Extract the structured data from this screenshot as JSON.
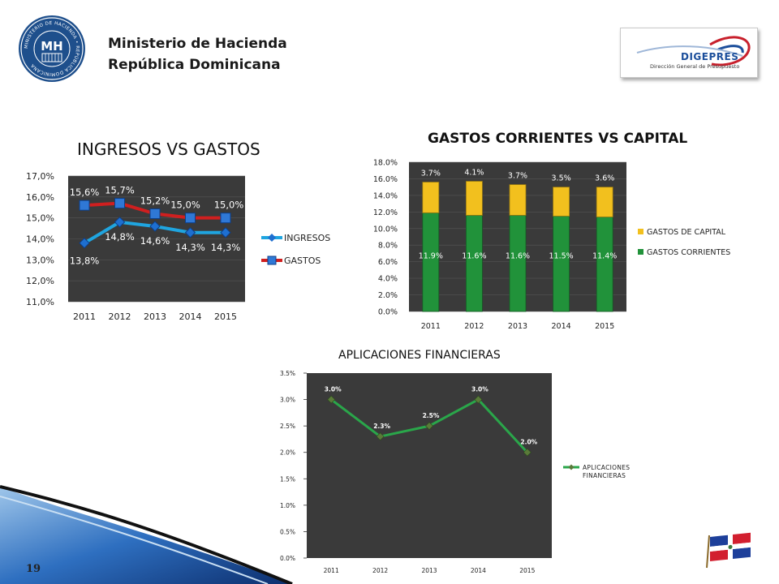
{
  "header": {
    "org_line1": "Ministerio de Hacienda",
    "org_line2": "República Dominicana",
    "seal_text": "MINISTERIO DE HACIENDA • REPÚBLICA DOMINICANA",
    "seal_monogram": "MH",
    "logo_name": "DIGEPRES",
    "logo_subtitle": "Dirección General de Presupuesto"
  },
  "colors": {
    "plot_bg": "#3a3a3a",
    "ingresos": "#1fa5e0",
    "gastos": "#d01f1f",
    "capital": "#f2c01e",
    "corrientes": "#21923a",
    "aplicaciones": "#2aa64a",
    "seal_blue": "#1e4f8c"
  },
  "footer": {
    "page_number": "19",
    "flag_icon": "dominican-flag-icon"
  },
  "chart_data": [
    {
      "id": "ingresos-gastos",
      "type": "line",
      "title": "INGRESOS VS GASTOS",
      "x": [
        "2011",
        "2012",
        "2013",
        "2014",
        "2015"
      ],
      "ylim": [
        11.0,
        17.0
      ],
      "yticks": [
        "11,0%",
        "12,0%",
        "13,0%",
        "14,0%",
        "15,0%",
        "16,0%",
        "17,0%"
      ],
      "legend_position": "right",
      "series": [
        {
          "name": "INGRESOS",
          "values": [
            13.8,
            14.8,
            14.6,
            14.3,
            14.3
          ],
          "labels": [
            "13,8%",
            "14,8%",
            "14,6%",
            "14,3%",
            "14,3%"
          ]
        },
        {
          "name": "GASTOS",
          "values": [
            15.6,
            15.7,
            15.2,
            15.0,
            15.0
          ],
          "labels": [
            "15,6%",
            "15,7%",
            "15,2%",
            "15,0%",
            "15,0%"
          ]
        }
      ]
    },
    {
      "id": "corrientes-capital",
      "type": "bar",
      "stacked": true,
      "title": "GASTOS CORRIENTES VS CAPITAL",
      "categories": [
        "2011",
        "2012",
        "2013",
        "2014",
        "2015"
      ],
      "ylim": [
        0,
        18
      ],
      "yticks": [
        "0.0%",
        "2.0%",
        "4.0%",
        "6.0%",
        "8.0%",
        "10.0%",
        "12.0%",
        "14.0%",
        "16.0%",
        "18.0%"
      ],
      "legend_position": "right",
      "series": [
        {
          "name": "GASTOS CORRIENTES",
          "values": [
            11.9,
            11.6,
            11.6,
            11.5,
            11.4
          ],
          "labels": [
            "11.9%",
            "11.6%",
            "11.6%",
            "11.5%",
            "11.4%"
          ]
        },
        {
          "name": "GASTOS DE CAPITAL",
          "values": [
            3.7,
            4.1,
            3.7,
            3.5,
            3.6
          ],
          "labels": [
            "3.7%",
            "4.1%",
            "3.7%",
            "3.5%",
            "3.6%"
          ]
        }
      ]
    },
    {
      "id": "aplicaciones",
      "type": "line",
      "title": "APLICACIONES FINANCIERAS",
      "x": [
        "2011",
        "2012",
        "2013",
        "2014",
        "2015"
      ],
      "ylim": [
        0,
        3.5
      ],
      "yticks": [
        "0.0%",
        "0.5%",
        "1.0%",
        "1.5%",
        "2.0%",
        "2.5%",
        "3.0%",
        "3.5%"
      ],
      "legend_position": "right",
      "series": [
        {
          "name": "APLICACIONES FINANCIERAS",
          "values": [
            3.0,
            2.3,
            2.5,
            3.0,
            2.0
          ],
          "labels": [
            "3.0%",
            "2.3%",
            "2.5%",
            "3.0%",
            "2.0%"
          ]
        }
      ]
    }
  ]
}
